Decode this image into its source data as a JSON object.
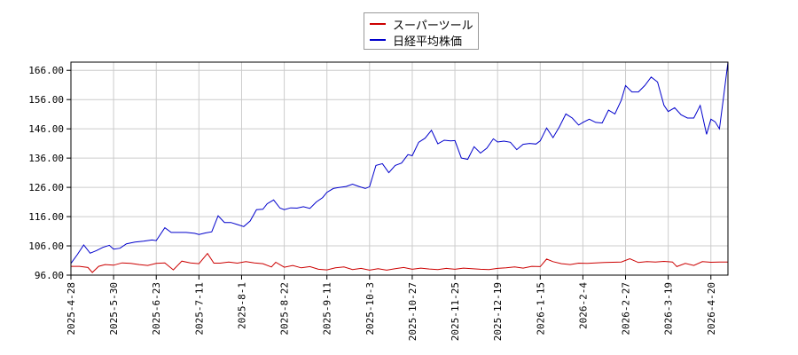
{
  "chart_data": {
    "type": "line",
    "title": "",
    "xlabel": "",
    "ylabel": "",
    "ylim": [
      96.0,
      168.8
    ],
    "yticks": [
      96.0,
      106.0,
      116.0,
      126.0,
      136.0,
      146.0,
      156.0,
      166.0
    ],
    "ytick_labels": [
      "96.00",
      "106.00",
      "116.00",
      "126.00",
      "136.00",
      "146.00",
      "156.00",
      "166.00"
    ],
    "xtick_labels": [
      "2025-4-28",
      "2025-5-30",
      "2025-6-23",
      "2025-7-11",
      "2025-8-1",
      "2025-8-22",
      "2025-9-11",
      "2025-10-3",
      "2025-10-27",
      "2025-11-25",
      "2025-12-19",
      "2026-1-15",
      "2026-2-4",
      "2026-2-27",
      "2026-3-19",
      "2026-4-20"
    ],
    "grid": true,
    "legend_position": "top-center",
    "x_note": "x values are tick positions (0 = 2025-4-28, 15 = 2026-4-20)",
    "xlim": [
      0,
      15.4
    ],
    "series": [
      {
        "name": "スーパーツール",
        "color": "#cc0000",
        "x": [
          0,
          0.2,
          0.4,
          0.5,
          0.65,
          0.8,
          1.0,
          1.2,
          1.4,
          1.6,
          1.8,
          2.0,
          2.2,
          2.4,
          2.6,
          2.8,
          3.0,
          3.2,
          3.35,
          3.5,
          3.7,
          3.9,
          4.1,
          4.3,
          4.5,
          4.7,
          4.8,
          5.0,
          5.2,
          5.4,
          5.6,
          5.8,
          6.0,
          6.2,
          6.4,
          6.6,
          6.8,
          7.0,
          7.2,
          7.4,
          7.6,
          7.8,
          8.0,
          8.2,
          8.4,
          8.6,
          8.8,
          9.0,
          9.2,
          9.4,
          9.6,
          9.8,
          10.0,
          10.2,
          10.4,
          10.6,
          10.8,
          11.0,
          11.15,
          11.3,
          11.5,
          11.7,
          11.9,
          12.1,
          12.3,
          12.5,
          12.7,
          12.9,
          13.1,
          13.3,
          13.5,
          13.7,
          13.9,
          14.1,
          14.2,
          14.4,
          14.6,
          14.8,
          15.0,
          15.2,
          15.4
        ],
        "values": [
          99.0,
          99.0,
          98.6,
          96.9,
          99.0,
          99.6,
          99.4,
          100.2,
          100.0,
          99.6,
          99.3,
          100.0,
          100.2,
          97.8,
          100.8,
          100.2,
          99.9,
          103.4,
          100.1,
          100.1,
          100.5,
          100.1,
          100.6,
          100.2,
          99.9,
          98.8,
          100.4,
          98.7,
          99.3,
          98.5,
          98.9,
          98.0,
          97.8,
          98.5,
          98.8,
          97.9,
          98.3,
          97.7,
          98.2,
          97.7,
          98.2,
          98.6,
          98.0,
          98.4,
          98.1,
          97.9,
          98.3,
          98.0,
          98.4,
          98.2,
          98.0,
          97.9,
          98.3,
          98.5,
          98.8,
          98.4,
          99.0,
          98.9,
          101.5,
          100.6,
          99.9,
          99.6,
          100.1,
          100.0,
          100.2,
          100.3,
          100.4,
          100.5,
          101.6,
          100.3,
          100.6,
          100.5,
          100.7,
          100.5,
          98.9,
          100.0,
          99.3,
          100.6,
          100.4,
          100.5,
          100.5
        ]
      },
      {
        "name": "日経平均株価",
        "color": "#0000cc",
        "x": [
          0,
          0.15,
          0.3,
          0.45,
          0.6,
          0.75,
          0.9,
          1.0,
          1.15,
          1.3,
          1.5,
          1.7,
          1.9,
          2.0,
          2.2,
          2.35,
          2.5,
          2.7,
          2.9,
          3.0,
          3.15,
          3.3,
          3.45,
          3.6,
          3.75,
          3.9,
          4.05,
          4.2,
          4.35,
          4.5,
          4.6,
          4.75,
          4.9,
          5.0,
          5.15,
          5.3,
          5.45,
          5.6,
          5.75,
          5.9,
          6.0,
          6.15,
          6.3,
          6.45,
          6.6,
          6.75,
          6.9,
          7.0,
          7.15,
          7.3,
          7.45,
          7.6,
          7.75,
          7.9,
          8.0,
          8.15,
          8.3,
          8.45,
          8.6,
          8.75,
          8.9,
          9.0,
          9.15,
          9.3,
          9.45,
          9.6,
          9.75,
          9.9,
          10.0,
          10.15,
          10.3,
          10.45,
          10.6,
          10.75,
          10.9,
          11.0,
          11.15,
          11.3,
          11.45,
          11.6,
          11.75,
          11.9,
          12.0,
          12.15,
          12.3,
          12.45,
          12.6,
          12.75,
          12.9,
          13.0,
          13.15,
          13.3,
          13.45,
          13.6,
          13.75,
          13.9,
          14.0,
          14.15,
          14.3,
          14.45,
          14.6,
          14.75,
          14.9,
          15.0,
          15.1,
          15.2,
          15.3,
          15.4
        ],
        "values": [
          100.0,
          103.0,
          106.3,
          103.5,
          104.4,
          105.5,
          106.2,
          104.9,
          105.2,
          106.7,
          107.3,
          107.6,
          108.0,
          107.8,
          112.2,
          110.6,
          110.6,
          110.6,
          110.3,
          109.9,
          110.4,
          110.8,
          116.3,
          114.0,
          114.0,
          113.3,
          112.6,
          114.5,
          118.4,
          118.5,
          120.4,
          121.7,
          118.9,
          118.4,
          119.0,
          118.9,
          119.4,
          118.8,
          121.0,
          122.5,
          124.3,
          125.6,
          126.0,
          126.3,
          127.1,
          126.3,
          125.6,
          126.2,
          133.5,
          134.1,
          131.0,
          133.5,
          134.3,
          137.2,
          136.8,
          141.4,
          142.8,
          145.5,
          140.9,
          142.1,
          141.9,
          142.0,
          136.0,
          135.6,
          139.9,
          137.7,
          139.4,
          142.6,
          141.5,
          141.8,
          141.4,
          138.9,
          140.7,
          141.0,
          140.8,
          141.9,
          146.3,
          143.0,
          146.7,
          151.1,
          149.7,
          147.3,
          148.2,
          149.3,
          148.2,
          148.0,
          152.4,
          151.1,
          155.8,
          160.8,
          158.6,
          158.6,
          160.8,
          163.7,
          162.0,
          154.1,
          151.9,
          153.2,
          150.8,
          149.7,
          149.7,
          154.0,
          144.1,
          149.3,
          148.4,
          146.0,
          157.2,
          168.8
        ]
      }
    ]
  }
}
